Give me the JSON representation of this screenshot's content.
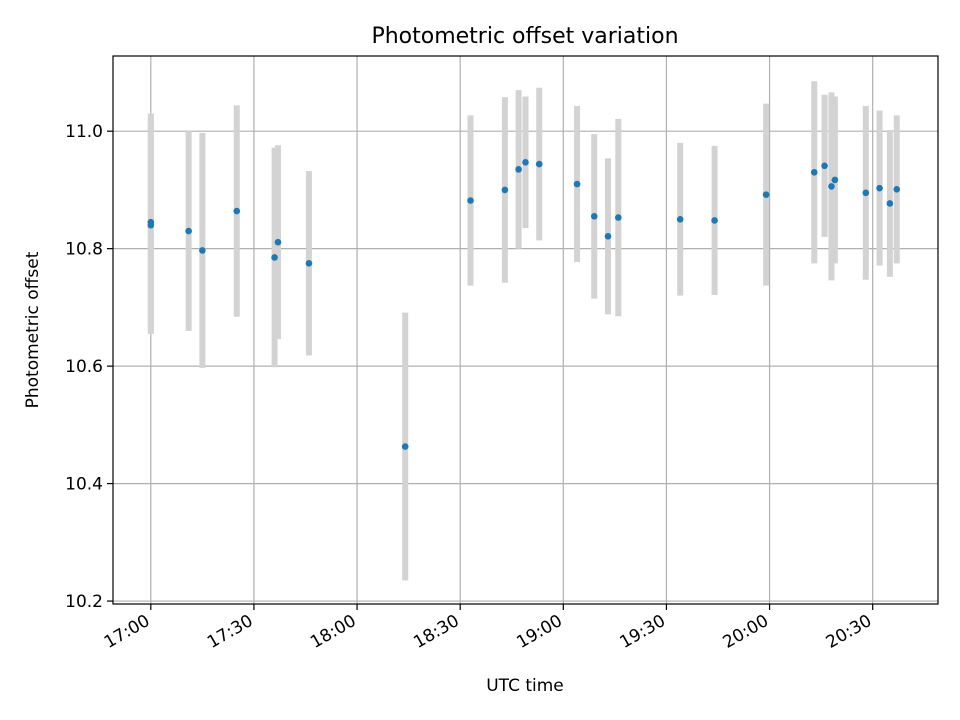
{
  "chart_data": {
    "type": "scatter",
    "title": "Photometric offset variation",
    "xlabel": "UTC time",
    "ylabel": "Photometric offset",
    "x_axis_type": "time",
    "xlim": [
      "16:49",
      "20:49"
    ],
    "ylim": [
      10.195,
      11.128
    ],
    "x_ticks": [
      "17:00",
      "17:30",
      "18:00",
      "18:30",
      "19:00",
      "19:30",
      "20:00",
      "20:30"
    ],
    "y_ticks": [
      10.2,
      10.4,
      10.6,
      10.8,
      11.0
    ],
    "grid": true,
    "colors": {
      "point": "#1f77b4",
      "errorbar": "#d3d3d3"
    },
    "points": [
      {
        "x": "17:00",
        "y": 10.845,
        "err": 0.185
      },
      {
        "x": "17:00",
        "y": 10.84,
        "err": 0.185
      },
      {
        "x": "17:11",
        "y": 10.83,
        "err": 0.17
      },
      {
        "x": "17:15",
        "y": 10.797,
        "err": 0.2
      },
      {
        "x": "17:25",
        "y": 10.864,
        "err": 0.18
      },
      {
        "x": "17:36",
        "y": 10.785,
        "err": 0.187
      },
      {
        "x": "17:37",
        "y": 10.811,
        "err": 0.165
      },
      {
        "x": "17:46",
        "y": 10.775,
        "err": 0.157
      },
      {
        "x": "18:14",
        "y": 10.463,
        "err": 0.228
      },
      {
        "x": "18:33",
        "y": 10.882,
        "err": 0.145
      },
      {
        "x": "18:43",
        "y": 10.9,
        "err": 0.158
      },
      {
        "x": "18:47",
        "y": 10.935,
        "err": 0.135
      },
      {
        "x": "18:49",
        "y": 10.947,
        "err": 0.112
      },
      {
        "x": "18:53",
        "y": 10.944,
        "err": 0.13
      },
      {
        "x": "19:04",
        "y": 10.91,
        "err": 0.133
      },
      {
        "x": "19:09",
        "y": 10.855,
        "err": 0.14
      },
      {
        "x": "19:13",
        "y": 10.821,
        "err": 0.133
      },
      {
        "x": "19:16",
        "y": 10.853,
        "err": 0.168
      },
      {
        "x": "19:34",
        "y": 10.85,
        "err": 0.13
      },
      {
        "x": "19:44",
        "y": 10.848,
        "err": 0.127
      },
      {
        "x": "19:59",
        "y": 10.892,
        "err": 0.155
      },
      {
        "x": "20:13",
        "y": 10.93,
        "err": 0.155
      },
      {
        "x": "20:16",
        "y": 10.941,
        "err": 0.121
      },
      {
        "x": "20:18",
        "y": 10.906,
        "err": 0.16
      },
      {
        "x": "20:19",
        "y": 10.917,
        "err": 0.142
      },
      {
        "x": "20:28",
        "y": 10.895,
        "err": 0.148
      },
      {
        "x": "20:32",
        "y": 10.903,
        "err": 0.132
      },
      {
        "x": "20:35",
        "y": 10.877,
        "err": 0.125
      },
      {
        "x": "20:37",
        "y": 10.901,
        "err": 0.126
      }
    ]
  }
}
